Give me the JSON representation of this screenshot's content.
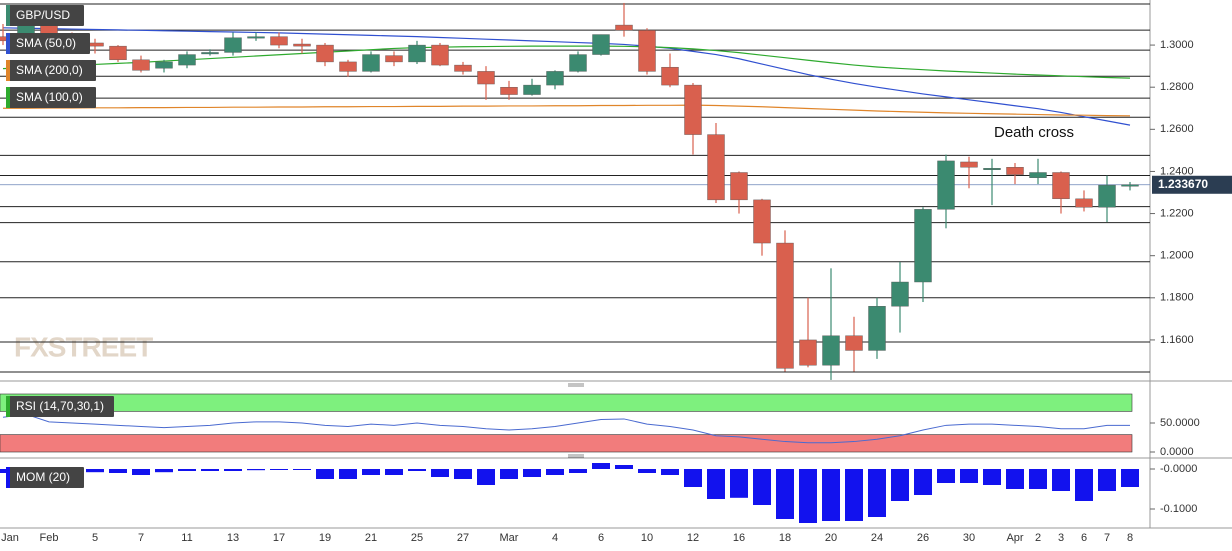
{
  "chart_data": [
    {
      "type": "candlestick",
      "title": "GBP/USD",
      "categories": [
        "Jan",
        null,
        "Feb",
        null,
        "5",
        null,
        "7",
        null,
        "11",
        null,
        "13",
        null,
        "17",
        null,
        "19",
        null,
        "21",
        null,
        "25",
        null,
        "27",
        null,
        "Mar",
        null,
        "4",
        null,
        "6",
        null,
        "10",
        null,
        "12",
        null,
        "16",
        null,
        "18",
        null,
        "20",
        null,
        "24",
        null,
        "26",
        null,
        "30",
        null,
        "Apr",
        "2",
        "3",
        "6",
        "7",
        "8"
      ],
      "open": [
        1.304,
        1.304,
        1.316,
        1.3045,
        1.301,
        1.2995,
        1.293,
        1.289,
        1.2905,
        1.296,
        1.2965,
        1.3035,
        1.304,
        1.3005,
        1.3,
        1.292,
        1.2875,
        1.295,
        1.292,
        1.3,
        1.2905,
        1.2875,
        1.28,
        1.2765,
        1.281,
        1.2875,
        1.2955,
        1.3095,
        1.307,
        1.2895,
        1.281,
        1.2575,
        1.2395,
        1.2265,
        1.206,
        1.16,
        1.148,
        1.162,
        1.155,
        1.176,
        1.1875,
        1.222,
        1.2445,
        1.241,
        1.242,
        1.237,
        1.2395,
        1.227,
        1.223,
        1.2335
      ],
      "high": [
        1.31,
        1.311,
        1.318,
        1.306,
        1.303,
        1.3,
        1.295,
        1.293,
        1.297,
        1.298,
        1.306,
        1.306,
        1.306,
        1.303,
        1.301,
        1.293,
        1.297,
        1.297,
        1.302,
        1.301,
        1.292,
        1.29,
        1.283,
        1.284,
        1.288,
        1.297,
        1.305,
        1.32,
        1.308,
        1.296,
        1.282,
        1.263,
        1.24,
        1.227,
        1.212,
        1.18,
        1.194,
        1.171,
        1.18,
        1.197,
        1.223,
        1.248,
        1.247,
        1.246,
        1.244,
        1.246,
        1.24,
        1.231,
        1.238,
        1.235
      ],
      "low": [
        1.3,
        1.302,
        1.302,
        1.298,
        1.296,
        1.292,
        1.287,
        1.287,
        1.289,
        1.295,
        1.295,
        1.302,
        1.2985,
        1.296,
        1.29,
        1.285,
        1.287,
        1.29,
        1.291,
        1.29,
        1.286,
        1.274,
        1.274,
        1.276,
        1.279,
        1.287,
        1.295,
        1.304,
        1.286,
        1.28,
        1.248,
        1.225,
        1.22,
        1.2,
        1.145,
        1.147,
        1.141,
        1.145,
        1.151,
        1.1635,
        1.178,
        1.213,
        1.232,
        1.224,
        1.234,
        1.234,
        1.22,
        1.221,
        1.216,
        1.231
      ],
      "close": [
        1.302,
        1.31,
        1.3045,
        1.3,
        1.2995,
        1.293,
        1.288,
        1.292,
        1.2955,
        1.2965,
        1.3035,
        1.304,
        1.3,
        1.2995,
        1.292,
        1.2875,
        1.2955,
        1.292,
        1.3,
        1.2905,
        1.2875,
        1.2815,
        1.2765,
        1.281,
        1.2875,
        1.2955,
        1.305,
        1.307,
        1.2875,
        1.281,
        1.2575,
        1.2265,
        1.2265,
        1.206,
        1.1465,
        1.148,
        1.162,
        1.155,
        1.176,
        1.1875,
        1.222,
        1.245,
        1.242,
        1.2415,
        1.2385,
        1.2395,
        1.227,
        1.223,
        1.2335,
        1.2337
      ],
      "up_color": "#3b8a70",
      "down_color": "#d9604e",
      "ylim": [
        1.1405,
        1.3214
      ],
      "yticks": [
        {
          "value": 1.3,
          "label": "1.3000"
        },
        {
          "value": 1.28,
          "label": "1.2800"
        },
        {
          "value": 1.26,
          "label": "1.2600"
        },
        {
          "value": 1.24,
          "label": "1.2400"
        },
        {
          "value": 1.22,
          "label": "1.2200"
        },
        {
          "value": 1.2,
          "label": "1.2000"
        },
        {
          "value": 1.18,
          "label": "1.1800"
        },
        {
          "value": 1.16,
          "label": "1.1600"
        }
      ],
      "levels": [
        1.3195,
        1.3071,
        1.2976,
        1.2852,
        1.2748,
        1.2657,
        1.2476,
        1.2381,
        1.2233,
        1.2157,
        1.1971,
        1.18,
        1.159,
        1.1448
      ],
      "current_price": {
        "value": 1.23367,
        "label": "1.233670"
      },
      "series": [
        {
          "name": "SMA (50,0)",
          "color": "#3050d0",
          "values": [
            1.3082,
            1.308,
            1.3078,
            1.3076,
            1.3074,
            1.3072,
            1.307,
            1.3068,
            1.3066,
            1.3064,
            1.3062,
            1.306,
            1.3058,
            1.3055,
            1.3052,
            1.3049,
            1.3046,
            1.3043,
            1.304,
            1.3036,
            1.3032,
            1.3028,
            1.3024,
            1.302,
            1.3016,
            1.3012,
            1.3008,
            1.3003,
            1.2995,
            1.2985,
            1.297,
            1.2955,
            1.2935,
            1.291,
            1.2885,
            1.286,
            1.2838,
            1.2818,
            1.28,
            1.2784,
            1.2768,
            1.2754,
            1.274,
            1.2726,
            1.2712,
            1.2698,
            1.268,
            1.266,
            1.264,
            1.262
          ]
        },
        {
          "name": "SMA (200,0)",
          "color": "#e0852a",
          "values": [
            1.27,
            1.27,
            1.2701,
            1.2701,
            1.2702,
            1.2702,
            1.2703,
            1.2703,
            1.2704,
            1.2704,
            1.2705,
            1.2705,
            1.2706,
            1.2706,
            1.2707,
            1.2707,
            1.2708,
            1.2708,
            1.2709,
            1.2709,
            1.271,
            1.271,
            1.2711,
            1.2711,
            1.2712,
            1.2712,
            1.2713,
            1.2713,
            1.2714,
            1.2714,
            1.2715,
            1.2713,
            1.271,
            1.2707,
            1.2703,
            1.2699,
            1.2695,
            1.2691,
            1.2687,
            1.2684,
            1.2681,
            1.2678,
            1.2676,
            1.2674,
            1.2672,
            1.267,
            1.2668,
            1.2667,
            1.2665,
            1.2664
          ]
        },
        {
          "name": "SMA (100,0)",
          "color": "#2eaa2e",
          "values": [
            1.2888,
            1.2893,
            1.2898,
            1.2903,
            1.2908,
            1.2913,
            1.2918,
            1.2924,
            1.293,
            1.2936,
            1.2942,
            1.2948,
            1.2954,
            1.296,
            1.2966,
            1.2972,
            1.2978,
            1.2984,
            1.2988,
            1.299,
            1.2992,
            1.2993,
            1.2994,
            1.2995,
            1.2995,
            1.2995,
            1.2995,
            1.2994,
            1.2992,
            1.2988,
            1.2982,
            1.2974,
            1.2964,
            1.2952,
            1.294,
            1.2928,
            1.2916,
            1.2905,
            1.2896,
            1.2889,
            1.2883,
            1.2877,
            1.2872,
            1.2867,
            1.2862,
            1.2858,
            1.2854,
            1.285,
            1.2846,
            1.2843
          ]
        }
      ],
      "annotation": "Death cross",
      "watermark": "FXSTREET"
    },
    {
      "type": "line",
      "title": "RSI (14,70,30,1)",
      "color": "#4a6ad0",
      "values": [
        60,
        65,
        52,
        50,
        48,
        46,
        44,
        42,
        44,
        46,
        50,
        52,
        52,
        50,
        46,
        44,
        48,
        46,
        50,
        46,
        44,
        40,
        38,
        40,
        44,
        50,
        56,
        57,
        48,
        44,
        38,
        28,
        26,
        22,
        18,
        16,
        16,
        18,
        22,
        28,
        38,
        46,
        48,
        48,
        46,
        44,
        40,
        40,
        46,
        46
      ],
      "ylim": [
        0,
        100
      ],
      "yticks": [
        {
          "value": 50,
          "label": "50.0000"
        },
        {
          "value": 0,
          "label": "0.0000"
        }
      ],
      "overbought": 70,
      "oversold": 30,
      "overbought_color": "#7ef07e",
      "oversold_color": "#f27c7c"
    },
    {
      "type": "bar",
      "title": "MOM (20)",
      "color": "#1212ee",
      "values": [
        -0.01,
        -0.005,
        -0.005,
        -0.005,
        -0.008,
        -0.01,
        -0.015,
        -0.008,
        -0.005,
        -0.005,
        -0.005,
        -0.003,
        -0.002,
        -0.001,
        -0.025,
        -0.025,
        -0.015,
        -0.015,
        -0.005,
        -0.02,
        -0.025,
        -0.04,
        -0.025,
        -0.02,
        -0.015,
        -0.01,
        0.015,
        0.01,
        -0.01,
        -0.015,
        -0.045,
        -0.075,
        -0.072,
        -0.09,
        -0.125,
        -0.135,
        -0.13,
        -0.13,
        -0.12,
        -0.08,
        -0.065,
        -0.035,
        -0.035,
        -0.04,
        -0.05,
        -0.05,
        -0.055,
        -0.08,
        -0.055,
        -0.045
      ],
      "ylim": [
        -0.14,
        0.0175
      ],
      "yticks": [
        {
          "value": 0,
          "label": "-0.0000"
        },
        {
          "value": -0.1,
          "label": "-0.1000"
        }
      ]
    }
  ]
}
